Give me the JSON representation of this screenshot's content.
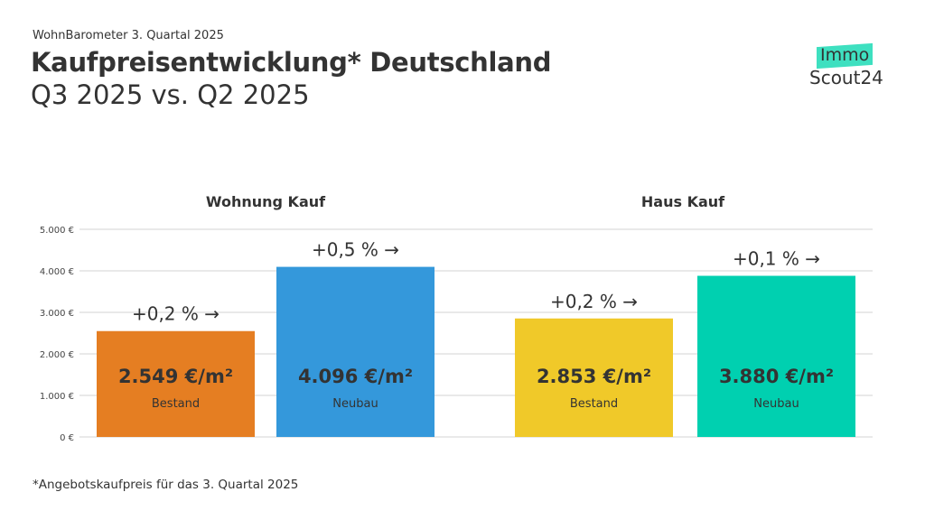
{
  "header": {
    "supertitle": "WohnBarometer 3. Quartal 2025",
    "title": "Kaufpreisentwicklung* Deutschland",
    "subtitle": "Q3 2025 vs. Q2 2025"
  },
  "logo": {
    "line1": "Immo",
    "line2": "Scout24",
    "accent": "#3EE0C0"
  },
  "footnote": "*Angebotskaufpreis für das 3. Quartal 2025",
  "chart_data": {
    "type": "bar",
    "ylim": [
      0,
      5000
    ],
    "yticks": [
      0,
      1000,
      2000,
      3000,
      4000,
      5000
    ],
    "ytick_labels": [
      "0 €",
      "1.000 €",
      "2.000 €",
      "3.000 €",
      "4.000 €",
      "5.000 €"
    ],
    "grid": true,
    "groups": [
      {
        "label": "Wohnung Kauf",
        "bars": [
          {
            "category": "Bestand",
            "value": 2549,
            "value_label": "2.549 €/m²",
            "change": "+0,2 %",
            "color": "#E57E22"
          },
          {
            "category": "Neubau",
            "value": 4096,
            "value_label": "4.096 €/m²",
            "change": "+0,5 %",
            "color": "#3498DB"
          }
        ]
      },
      {
        "label": "Haus Kauf",
        "bars": [
          {
            "category": "Bestand",
            "value": 2853,
            "value_label": "2.853 €/m²",
            "change": "+0,2 %",
            "color": "#F0C929"
          },
          {
            "category": "Neubau",
            "value": 3880,
            "value_label": "3.880 €/m²",
            "change": "+0,1 %",
            "color": "#00D0B0"
          }
        ]
      }
    ]
  }
}
